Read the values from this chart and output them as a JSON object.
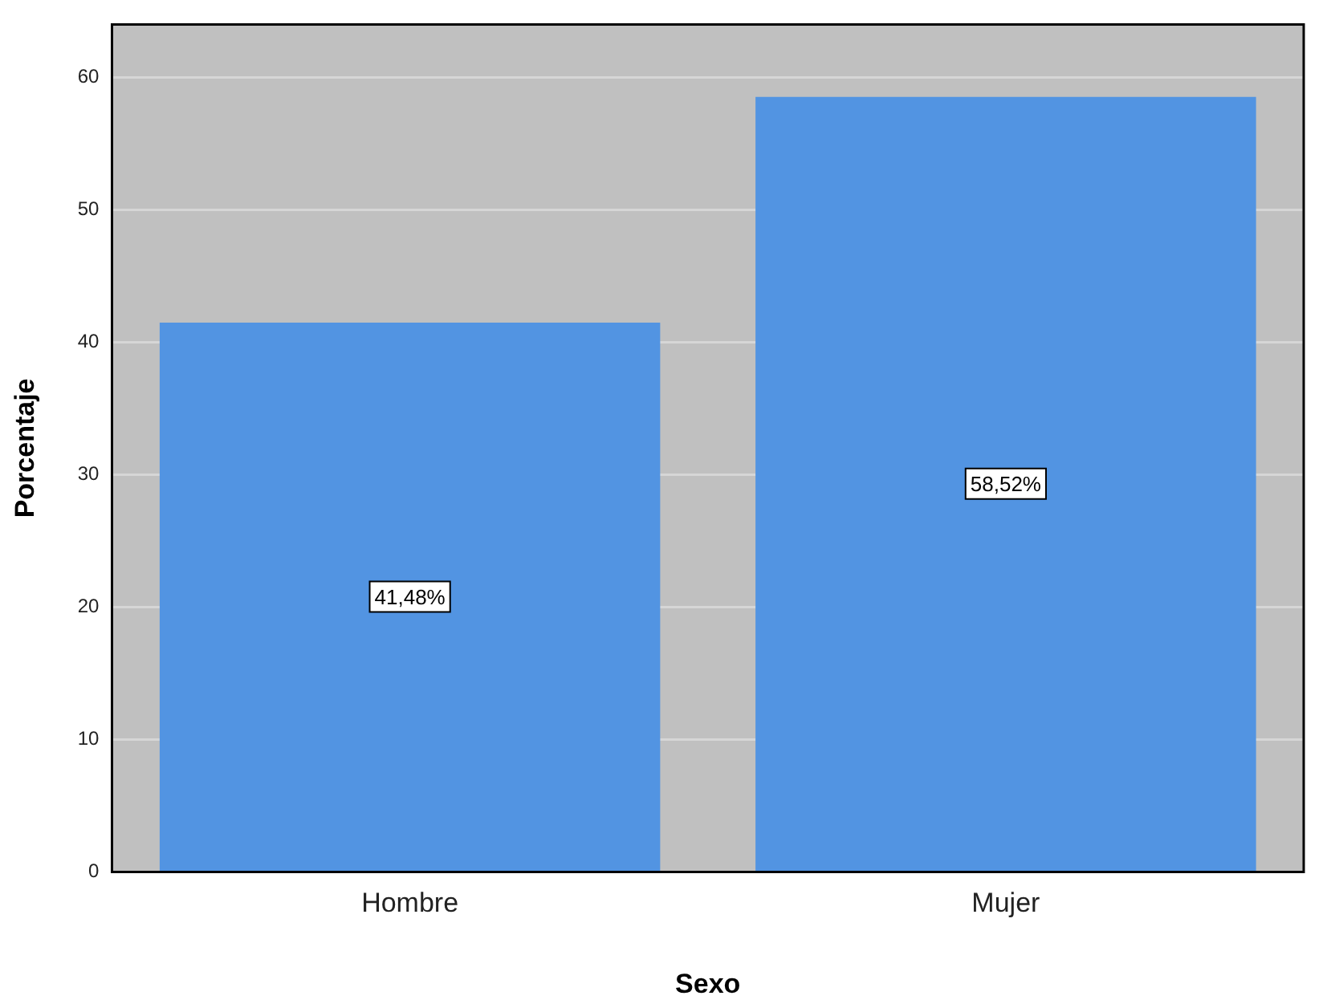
{
  "chart_data": {
    "type": "bar",
    "categories": [
      "Hombre",
      "Mujer"
    ],
    "values": [
      41.48,
      58.52
    ],
    "value_labels": [
      "41,48%",
      "58,52%"
    ],
    "color": "#5294e2",
    "xlabel": "Sexo",
    "ylabel": "Porcentaje",
    "ylim": [
      0,
      64
    ],
    "yticks": [
      0,
      10,
      20,
      30,
      40,
      50,
      60
    ],
    "grid": "y"
  }
}
